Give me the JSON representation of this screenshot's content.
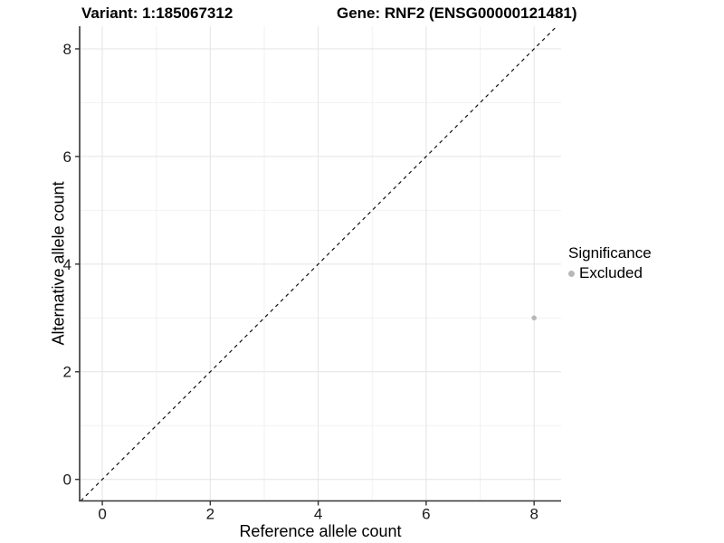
{
  "header": {
    "variant_title": "Variant: 1:185067312",
    "gene_title": "Gene: RNF2 (ENSG00000121481)"
  },
  "chart_data": {
    "type": "scatter",
    "title": "Variant: 1:185067312   Gene: RNF2 (ENSG00000121481)",
    "xlabel": "Reference allele count",
    "ylabel": "Alternative allele count",
    "xlim": [
      -0.42,
      8.5
    ],
    "ylim": [
      -0.4,
      8.42
    ],
    "x_ticks": [
      0,
      2,
      4,
      6,
      8
    ],
    "y_ticks": [
      0,
      2,
      4,
      6,
      8
    ],
    "x_minor_ticks": [
      1,
      3,
      5,
      7
    ],
    "y_minor_ticks": [
      1,
      3,
      5,
      7
    ],
    "grid": {
      "on": true,
      "major_color": "#e4e4e4",
      "minor_color": "#f2f2f2"
    },
    "identity_line": {
      "show": true,
      "style": "dashed",
      "color": "#111111",
      "slope": 1,
      "intercept": 0
    },
    "points": [
      {
        "x": 8,
        "y": 3,
        "series": "Excluded"
      }
    ],
    "point_radius": 2.8,
    "axis_color": "#333333",
    "tick_label_color": "#1a1a1a",
    "tick_font_size": 17,
    "legend": {
      "title": "Significance",
      "position": "right",
      "items": [
        {
          "label": "Excluded",
          "color": "#b8b8b8"
        }
      ]
    }
  }
}
